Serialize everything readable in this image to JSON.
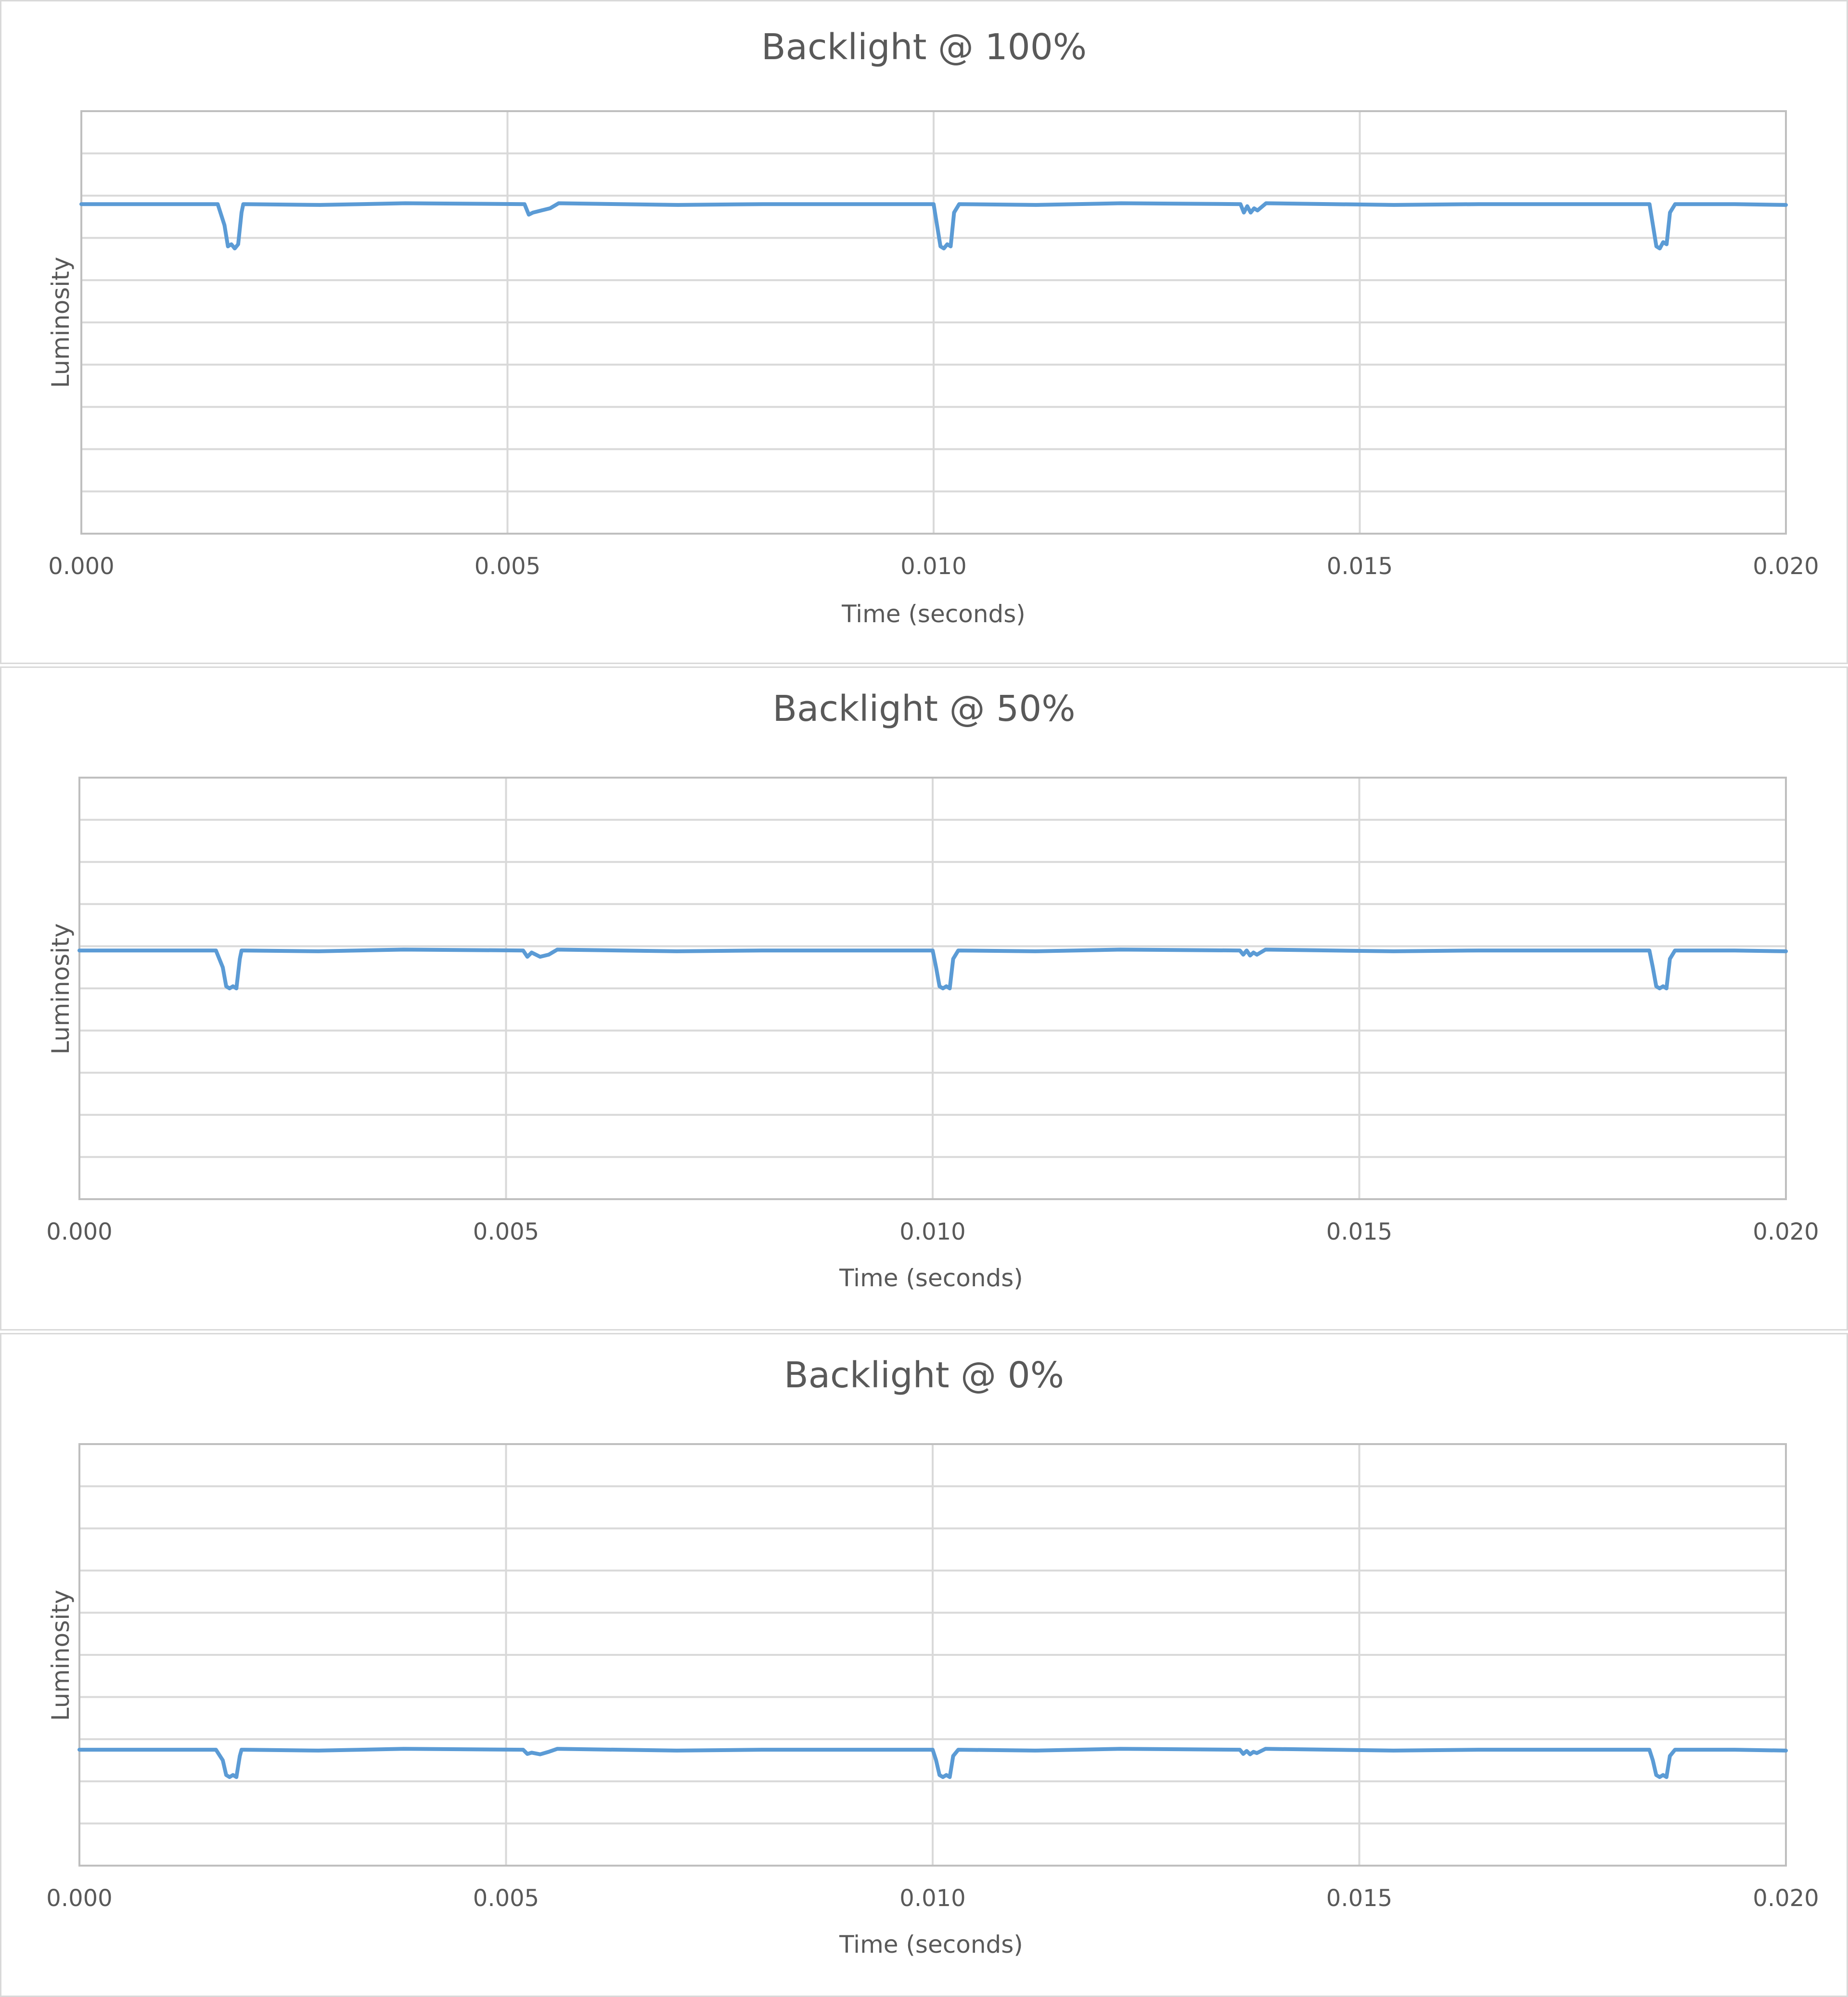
{
  "chart_data": [
    {
      "type": "line",
      "title": "Backlight @ 100%",
      "xlabel": "Time (seconds)",
      "ylabel": "Luminosity",
      "xlim": [
        0.0,
        0.02
      ],
      "ylim": [
        0,
        10
      ],
      "x_ticks": [
        "0.000",
        "0.005",
        "0.010",
        "0.015",
        "0.020"
      ],
      "y_gridlines": 10,
      "grid": true,
      "color": "#5b9bd5",
      "series": [
        {
          "x": [
            0.0,
            0.0016,
            0.00168,
            0.00172,
            0.00176,
            0.0018,
            0.00184,
            0.00188,
            0.0019,
            0.0028,
            0.0038,
            0.0052,
            0.00525,
            0.0053,
            0.0054,
            0.0055,
            0.0056,
            0.007,
            0.008,
            0.01,
            0.01004,
            0.01008,
            0.01012,
            0.01016,
            0.0102,
            0.01024,
            0.0103,
            0.0112,
            0.0122,
            0.0136,
            0.01364,
            0.01368,
            0.01372,
            0.01376,
            0.0138,
            0.0139,
            0.0154,
            0.0164,
            0.0184,
            0.01844,
            0.01848,
            0.01852,
            0.01856,
            0.0186,
            0.01864,
            0.0187,
            0.0194,
            0.02
          ],
          "y": [
            7.8,
            7.8,
            7.3,
            6.8,
            6.85,
            6.75,
            6.85,
            7.6,
            7.8,
            7.78,
            7.82,
            7.8,
            7.55,
            7.6,
            7.65,
            7.7,
            7.82,
            7.78,
            7.8,
            7.8,
            7.3,
            6.8,
            6.75,
            6.85,
            6.8,
            7.6,
            7.8,
            7.78,
            7.82,
            7.8,
            7.6,
            7.75,
            7.6,
            7.7,
            7.65,
            7.82,
            7.78,
            7.8,
            7.8,
            7.3,
            6.8,
            6.75,
            6.9,
            6.85,
            7.6,
            7.8,
            7.8,
            7.78
          ]
        }
      ]
    },
    {
      "type": "line",
      "title": "Backlight @ 50%",
      "xlabel": "Time (seconds)",
      "ylabel": "Luminosity",
      "xlim": [
        0.0,
        0.02
      ],
      "ylim": [
        0,
        10
      ],
      "x_ticks": [
        "0.000",
        "0.005",
        "0.010",
        "0.015",
        "0.020"
      ],
      "y_gridlines": 10,
      "grid": true,
      "color": "#5b9bd5",
      "series": [
        {
          "x": [
            0.0,
            0.0016,
            0.00168,
            0.00172,
            0.00176,
            0.0018,
            0.00184,
            0.00188,
            0.0019,
            0.0028,
            0.0038,
            0.0052,
            0.00525,
            0.0053,
            0.0054,
            0.0055,
            0.0056,
            0.007,
            0.008,
            0.01,
            0.01004,
            0.01008,
            0.01012,
            0.01016,
            0.0102,
            0.01024,
            0.0103,
            0.0112,
            0.0122,
            0.0136,
            0.01364,
            0.01368,
            0.01372,
            0.01376,
            0.0138,
            0.0139,
            0.0154,
            0.0164,
            0.0184,
            0.01844,
            0.01848,
            0.01852,
            0.01856,
            0.0186,
            0.01864,
            0.0187,
            0.0194,
            0.02
          ],
          "y": [
            5.9,
            5.9,
            5.5,
            5.05,
            5.0,
            5.05,
            5.0,
            5.7,
            5.9,
            5.88,
            5.92,
            5.9,
            5.75,
            5.85,
            5.75,
            5.8,
            5.92,
            5.88,
            5.9,
            5.9,
            5.5,
            5.05,
            5.0,
            5.05,
            5.0,
            5.7,
            5.9,
            5.88,
            5.92,
            5.9,
            5.8,
            5.9,
            5.78,
            5.85,
            5.8,
            5.92,
            5.88,
            5.9,
            5.9,
            5.5,
            5.05,
            5.0,
            5.05,
            5.0,
            5.7,
            5.9,
            5.9,
            5.88
          ]
        }
      ]
    },
    {
      "type": "line",
      "title": "Backlight @ 0%",
      "xlabel": "Time (seconds)",
      "ylabel": "Luminosity",
      "xlim": [
        0.0,
        0.02
      ],
      "ylim": [
        0,
        10
      ],
      "x_ticks": [
        "0.000",
        "0.005",
        "0.010",
        "0.015",
        "0.020"
      ],
      "y_gridlines": 10,
      "grid": true,
      "color": "#5b9bd5",
      "series": [
        {
          "x": [
            0.0,
            0.0016,
            0.00168,
            0.00172,
            0.00176,
            0.0018,
            0.00184,
            0.00188,
            0.0019,
            0.0028,
            0.0038,
            0.0052,
            0.00525,
            0.0053,
            0.0054,
            0.0055,
            0.0056,
            0.007,
            0.008,
            0.01,
            0.01004,
            0.01008,
            0.01012,
            0.01016,
            0.0102,
            0.01024,
            0.0103,
            0.0112,
            0.0122,
            0.0136,
            0.01364,
            0.01368,
            0.01372,
            0.01376,
            0.0138,
            0.0139,
            0.0154,
            0.0164,
            0.0184,
            0.01844,
            0.01848,
            0.01852,
            0.01856,
            0.0186,
            0.01864,
            0.0187,
            0.0194,
            0.02
          ],
          "y": [
            2.75,
            2.75,
            2.5,
            2.15,
            2.1,
            2.15,
            2.1,
            2.6,
            2.75,
            2.73,
            2.77,
            2.75,
            2.65,
            2.68,
            2.64,
            2.7,
            2.77,
            2.73,
            2.75,
            2.75,
            2.5,
            2.15,
            2.1,
            2.15,
            2.1,
            2.6,
            2.75,
            2.73,
            2.77,
            2.75,
            2.65,
            2.72,
            2.64,
            2.7,
            2.67,
            2.77,
            2.73,
            2.75,
            2.75,
            2.5,
            2.15,
            2.1,
            2.15,
            2.1,
            2.6,
            2.75,
            2.75,
            2.73
          ]
        }
      ]
    }
  ]
}
